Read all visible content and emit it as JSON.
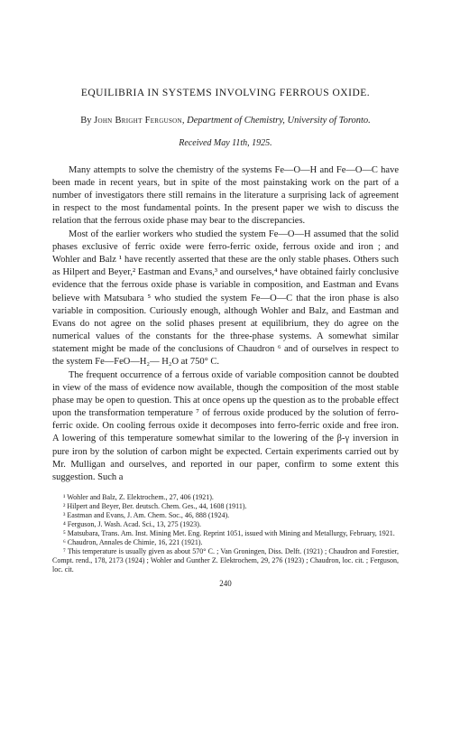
{
  "title": "EQUILIBRIA IN SYSTEMS INVOLVING FERROUS OXIDE.",
  "author_prefix": "By ",
  "author_name": "John Bright Ferguson",
  "author_affiliation": ", Department of Chemistry, University of Toronto.",
  "received": "Received May 11th, 1925.",
  "paragraphs": {
    "p1": "Many attempts to solve the chemistry of the systems Fe—O—H and Fe—O—C have been made in recent years, but in spite of the most painstaking work on the part of a number of investigators there still remains in the literature a surprising lack of agreement in respect to the most fundamental points. In the present paper we wish to discuss the relation that the ferrous oxide phase may bear to the discrepancies.",
    "p2": "Most of the earlier workers who studied the system Fe—O—H assumed that the solid phases exclusive of ferric oxide were ferro-ferric oxide, ferrous oxide and iron ; and Wohler and Balz ¹ have recently asserted that these are the only stable phases. Others such as Hilpert and Beyer,² Eastman and Evans,³ and ourselves,⁴ have obtained fairly conclusive evidence that the ferrous oxide phase is variable in composition, and Eastman and Evans believe with Matsubara ⁵ who studied the system Fe—O—C that the iron phase is also variable in composition. Curiously enough, although Wohler and Balz, and Eastman and Evans do not agree on the solid phases present at equilibrium, they do agree on the numerical values of the constants for the three-phase systems. A somewhat similar statement might be made of the conclusions of Chaudron ⁶ and of ourselves in respect to the system Fe—FeO—H₂— H₂O at 750° C.",
    "p3": "The frequent occurrence of a ferrous oxide of variable composition cannot be doubted in view of the mass of evidence now available, though the composition of the most stable phase may be open to question. This at once opens up the question as to the probable effect upon the transformation temperature ⁷ of ferrous oxide produced by the solution of ferro-ferric oxide. On cooling ferrous oxide it decomposes into ferro-ferric oxide and free iron. A lowering of this temperature somewhat similar to the lowering of the β-γ inversion in pure iron by the solution of carbon might be expected. Certain experiments carried out by Mr. Mulligan and ourselves, and reported in our paper, confirm to some extent this suggestion. Such a"
  },
  "footnotes": {
    "f1": "¹ Wohler and Balz, Z. Elektrochem., 27, 406 (1921).",
    "f2": "² Hilpert and Beyer, Ber. deutsch. Chem. Ges., 44, 1608 (1911).",
    "f3": "³ Eastman and Evans, J. Am. Chem. Soc., 46, 888 (1924).",
    "f4": "⁴ Ferguson, J. Wash. Acad. Sci., 13, 275 (1923).",
    "f5": "⁵ Matsubara, Trans. Am. Inst. Mining Met. Eng. Reprint 1051, issued with Mining and Metallurgy, February, 1921.",
    "f6": "⁶ Chaudron, Annales de Chimie, 16, 221 (1921).",
    "f7": "⁷ This temperature is usually given as about 570° C. ; Van Groningen, Diss. Delft. (1921) ; Chaudron and Forestier, Compt. rend., 178, 2173 (1924) ; Wohler and Gunther Z. Elektrochem, 29, 276 (1923) ; Chaudron, loc. cit. ; Ferguson, loc. cit."
  },
  "page_number": "240"
}
